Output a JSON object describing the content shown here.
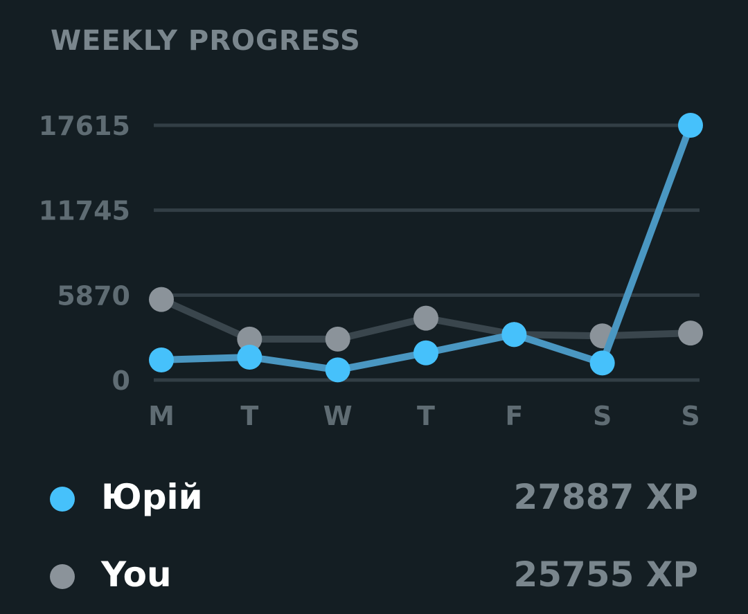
{
  "header": {
    "title": "WEEKLY PROGRESS"
  },
  "chart_data": {
    "type": "line",
    "categories": [
      "M",
      "T",
      "W",
      "T",
      "F",
      "S",
      "S"
    ],
    "y_ticks": [
      "0",
      "5870",
      "11745",
      "17615"
    ],
    "ylim": [
      0,
      17615
    ],
    "grid": true,
    "series": [
      {
        "name": "You",
        "color": "#8b939a",
        "line_color": "#3a464d",
        "values": [
          5570,
          2830,
          2830,
          4280,
          3150,
          3050,
          3250
        ]
      },
      {
        "name": "Юрій",
        "color": "#46c1fb",
        "line_color": "#4a97c2",
        "values": [
          1390,
          1580,
          700,
          1880,
          3150,
          1180,
          17615
        ]
      }
    ]
  },
  "legend": [
    {
      "name": "Юрій",
      "xp": "27887 XP",
      "color": "#46c1fb"
    },
    {
      "name": "You",
      "xp": "25755 XP",
      "color": "#8b939a"
    }
  ]
}
